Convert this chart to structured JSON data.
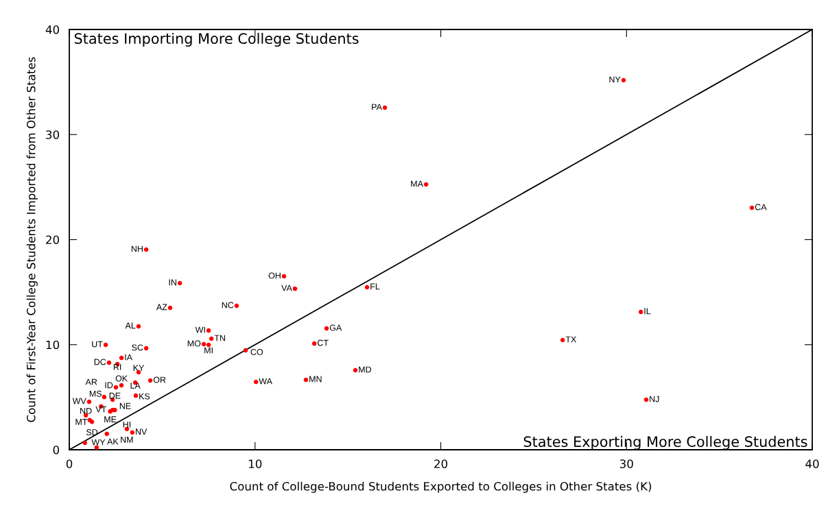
{
  "chart_data": {
    "type": "scatter",
    "xlabel": "Count of College-Bound Students Exported to Colleges in Other States (K)",
    "ylabel": "Count of First-Year College Students Imported from Other States",
    "annotations": [
      "States Importing More College Students",
      "States Exporting More College Students"
    ],
    "xlim": [
      0,
      40
    ],
    "ylim": [
      0,
      40
    ],
    "xticks": [
      0,
      10,
      20,
      30,
      40
    ],
    "yticks": [
      0,
      10,
      20,
      30,
      40
    ],
    "grid": false,
    "legend": false,
    "marker": "circle",
    "series": [
      {
        "type": "scatter",
        "color": "#ff0000",
        "x": [
          29.84,
          16.99,
          19.21,
          36.75,
          4.14,
          5.95,
          11.56,
          12.15,
          16.03,
          9.01,
          5.43,
          30.77,
          3.73,
          13.85,
          7.5,
          7.65,
          26.56,
          7.24,
          7.5,
          13.19,
          1.96,
          4.14,
          9.49,
          2.81,
          2.14,
          2.59,
          15.4,
          3.73,
          4.36,
          3.55,
          10.05,
          12.74,
          2.51,
          2.81,
          3.58,
          31.06,
          2.33,
          1.88,
          1.07,
          1.71,
          2.33,
          2.2,
          2.45,
          0.89,
          1.1,
          1.22,
          3.1,
          3.39,
          2.02,
          0.84,
          1.47
        ],
        "values": [
          35.17,
          32.56,
          25.25,
          23.03,
          19.05,
          15.86,
          16.51,
          15.33,
          15.47,
          13.7,
          13.51,
          13.12,
          11.75,
          11.55,
          11.35,
          10.57,
          10.44,
          10.05,
          9.98,
          10.11,
          9.98,
          9.66,
          9.46,
          8.74,
          8.29,
          8.16,
          7.57,
          7.37,
          6.59,
          6.39,
          6.46,
          6.66,
          5.94,
          6.13,
          5.15,
          4.76,
          4.76,
          5.02,
          4.57,
          4.13,
          3.78,
          3.65,
          3.78,
          3.28,
          2.83,
          2.66,
          1.98,
          1.65,
          1.52,
          0.65,
          0.22
        ],
        "value_labels": [
          "NY",
          "PA",
          "MA",
          "CA",
          "NH",
          "IN",
          "OH",
          "VA",
          "FL",
          "NC",
          "AZ",
          "IL",
          "AL",
          "GA",
          "WI",
          "TN",
          "TX",
          "MO",
          "MI",
          "CT",
          "UT",
          "SC",
          "CO",
          "IA",
          "DC",
          "RI",
          "MD",
          "KY",
          "OR",
          "LA",
          "WA",
          "MN",
          "ID",
          "OK",
          "KS",
          "NJ",
          "AR",
          "MS",
          "WV",
          "VT",
          "NE",
          "ME",
          "DE",
          "ND",
          "MT",
          "SD",
          "HI",
          "NV",
          "NM",
          "WY",
          "AK"
        ]
      },
      {
        "type": "line",
        "color": "#000000",
        "line_style": "solid",
        "marker": "none",
        "x": [
          0,
          40
        ],
        "values": [
          0,
          40
        ]
      }
    ]
  }
}
